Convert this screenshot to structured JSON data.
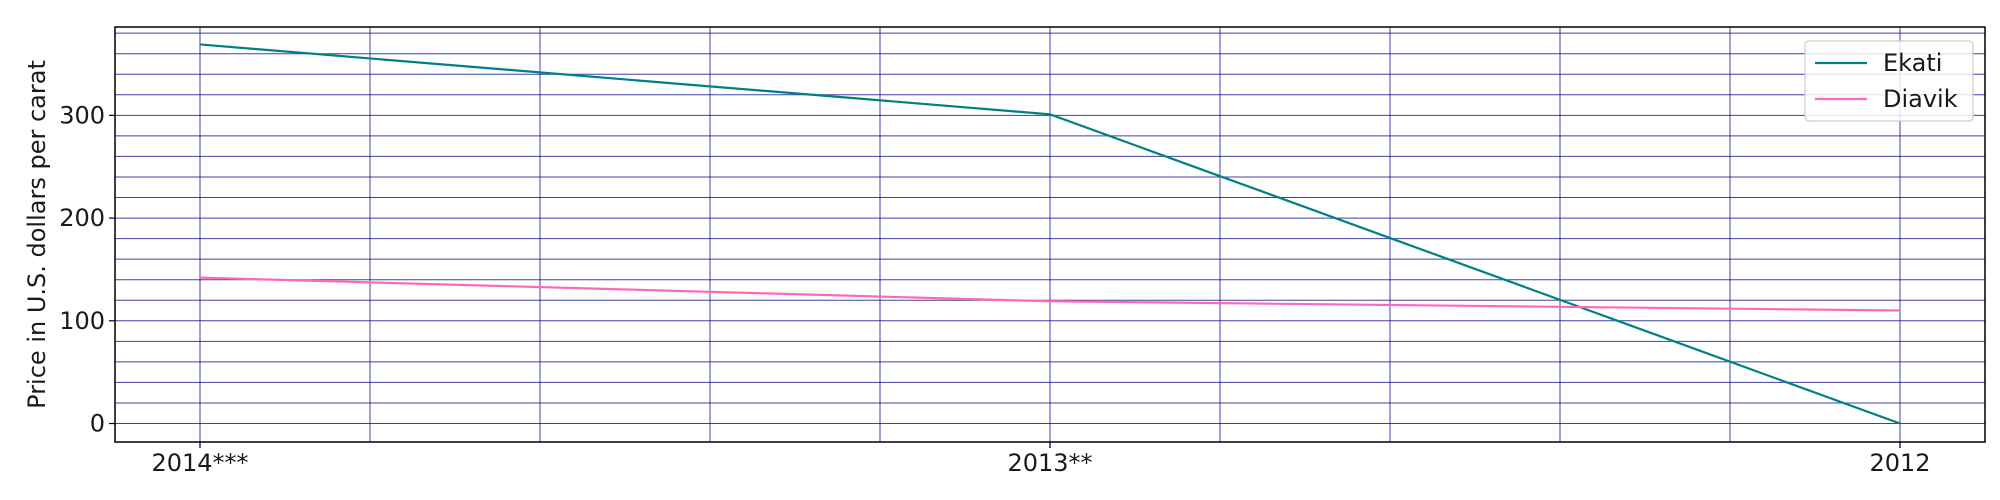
{
  "chart_data": {
    "type": "line",
    "title": "",
    "xlabel": "",
    "ylabel": "Price in U.S. dollars per carat",
    "categories": [
      "2014***",
      "2013**",
      "2012"
    ],
    "series": [
      {
        "name": "Ekati",
        "color": "#008080",
        "values": [
          369,
          301,
          0
        ]
      },
      {
        "name": "Diavik",
        "color": "#ff69b4",
        "values": [
          142,
          119,
          110
        ]
      }
    ],
    "ylim": [
      -18,
      386
    ],
    "yticks": [
      0,
      100,
      200,
      300
    ],
    "grid": true,
    "grid_color": "#00008b",
    "legend": "top-right"
  }
}
